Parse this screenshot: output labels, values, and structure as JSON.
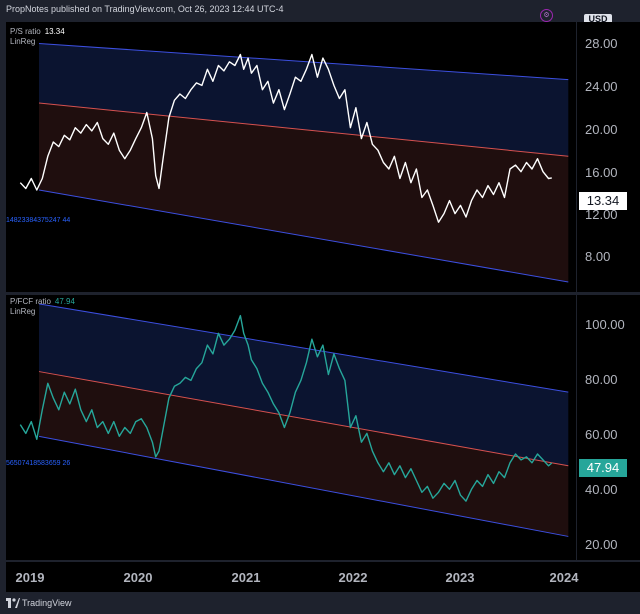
{
  "header": {
    "attribution": "PropNotes published on TradingView.com, Oct 26, 2023 12:44 UTC-4",
    "currency_badge": "USD"
  },
  "footer": {
    "brand": "TradingView"
  },
  "colors": {
    "upper_band_fill": "#0b1430",
    "lower_band_fill": "#1f0e0e",
    "channel_line": "#3c4fe0",
    "center_line": "#d6514f",
    "ps_line": "#ffffff",
    "pfcf_line": "#26a69a",
    "ps_badge_bg": "#ffffff",
    "pfcf_badge_bg": "#26a69a"
  },
  "chart_data": [
    {
      "type": "line",
      "legend": {
        "name": "P/S ratio",
        "value": "13.34",
        "sub": "LinReg"
      },
      "linreg_label": "14823384375247 44",
      "y_ticks": [
        "28.00",
        "24.00",
        "20.00",
        "16.00",
        "12.00",
        "8.00"
      ],
      "y_scale": "log",
      "ylim": [
        7.2,
        31
      ],
      "current_value": "13.34",
      "linreg": {
        "upper": [
          {
            "x": 2019.17,
            "y": 27.6
          },
          {
            "x": 2023.98,
            "y": 22.7
          }
        ],
        "center": [
          {
            "x": 2019.17,
            "y": 20.0
          },
          {
            "x": 2023.98,
            "y": 15.0
          }
        ],
        "lower": [
          {
            "x": 2019.17,
            "y": 12.5
          },
          {
            "x": 2023.98,
            "y": 7.6
          }
        ]
      },
      "series": [
        {
          "name": "P/S ratio",
          "points": [
            {
              "x": 2019.0,
              "y": 13.0
            },
            {
              "x": 2019.05,
              "y": 12.6
            },
            {
              "x": 2019.1,
              "y": 13.3
            },
            {
              "x": 2019.15,
              "y": 12.5
            },
            {
              "x": 2019.2,
              "y": 13.3
            },
            {
              "x": 2019.25,
              "y": 15.0
            },
            {
              "x": 2019.3,
              "y": 16.2
            },
            {
              "x": 2019.35,
              "y": 15.8
            },
            {
              "x": 2019.4,
              "y": 16.8
            },
            {
              "x": 2019.45,
              "y": 16.4
            },
            {
              "x": 2019.5,
              "y": 17.5
            },
            {
              "x": 2019.55,
              "y": 17.0
            },
            {
              "x": 2019.6,
              "y": 17.8
            },
            {
              "x": 2019.65,
              "y": 17.2
            },
            {
              "x": 2019.7,
              "y": 18.0
            },
            {
              "x": 2019.75,
              "y": 16.5
            },
            {
              "x": 2019.8,
              "y": 16.0
            },
            {
              "x": 2019.85,
              "y": 17.0
            },
            {
              "x": 2019.9,
              "y": 15.5
            },
            {
              "x": 2019.95,
              "y": 14.8
            },
            {
              "x": 2020.0,
              "y": 15.5
            },
            {
              "x": 2020.05,
              "y": 16.5
            },
            {
              "x": 2020.1,
              "y": 17.5
            },
            {
              "x": 2020.15,
              "y": 19.0
            },
            {
              "x": 2020.2,
              "y": 16.5
            },
            {
              "x": 2020.23,
              "y": 13.5
            },
            {
              "x": 2020.26,
              "y": 12.6
            },
            {
              "x": 2020.3,
              "y": 15.0
            },
            {
              "x": 2020.35,
              "y": 18.5
            },
            {
              "x": 2020.4,
              "y": 20.3
            },
            {
              "x": 2020.45,
              "y": 21.0
            },
            {
              "x": 2020.5,
              "y": 20.5
            },
            {
              "x": 2020.55,
              "y": 21.5
            },
            {
              "x": 2020.6,
              "y": 22.3
            },
            {
              "x": 2020.65,
              "y": 22.0
            },
            {
              "x": 2020.7,
              "y": 24.0
            },
            {
              "x": 2020.75,
              "y": 22.5
            },
            {
              "x": 2020.8,
              "y": 24.5
            },
            {
              "x": 2020.85,
              "y": 23.8
            },
            {
              "x": 2020.9,
              "y": 25.0
            },
            {
              "x": 2020.95,
              "y": 24.5
            },
            {
              "x": 2021.0,
              "y": 26.0
            },
            {
              "x": 2021.03,
              "y": 24.0
            },
            {
              "x": 2021.07,
              "y": 25.5
            },
            {
              "x": 2021.1,
              "y": 23.5
            },
            {
              "x": 2021.15,
              "y": 24.5
            },
            {
              "x": 2021.2,
              "y": 21.5
            },
            {
              "x": 2021.25,
              "y": 22.5
            },
            {
              "x": 2021.3,
              "y": 20.0
            },
            {
              "x": 2021.35,
              "y": 21.5
            },
            {
              "x": 2021.4,
              "y": 19.3
            },
            {
              "x": 2021.45,
              "y": 21.0
            },
            {
              "x": 2021.5,
              "y": 23.0
            },
            {
              "x": 2021.55,
              "y": 22.5
            },
            {
              "x": 2021.6,
              "y": 24.0
            },
            {
              "x": 2021.65,
              "y": 26.0
            },
            {
              "x": 2021.7,
              "y": 23.0
            },
            {
              "x": 2021.75,
              "y": 25.5
            },
            {
              "x": 2021.8,
              "y": 24.0
            },
            {
              "x": 2021.85,
              "y": 22.0
            },
            {
              "x": 2021.9,
              "y": 20.5
            },
            {
              "x": 2021.95,
              "y": 21.5
            },
            {
              "x": 2022.0,
              "y": 17.5
            },
            {
              "x": 2022.05,
              "y": 19.5
            },
            {
              "x": 2022.1,
              "y": 16.5
            },
            {
              "x": 2022.15,
              "y": 18.0
            },
            {
              "x": 2022.2,
              "y": 16.0
            },
            {
              "x": 2022.25,
              "y": 15.5
            },
            {
              "x": 2022.3,
              "y": 14.5
            },
            {
              "x": 2022.35,
              "y": 14.0
            },
            {
              "x": 2022.4,
              "y": 15.0
            },
            {
              "x": 2022.45,
              "y": 13.3
            },
            {
              "x": 2022.5,
              "y": 14.5
            },
            {
              "x": 2022.55,
              "y": 13.0
            },
            {
              "x": 2022.6,
              "y": 14.0
            },
            {
              "x": 2022.65,
              "y": 12.0
            },
            {
              "x": 2022.7,
              "y": 12.5
            },
            {
              "x": 2022.75,
              "y": 11.5
            },
            {
              "x": 2022.8,
              "y": 10.5
            },
            {
              "x": 2022.85,
              "y": 11.0
            },
            {
              "x": 2022.9,
              "y": 11.8
            },
            {
              "x": 2022.95,
              "y": 11.0
            },
            {
              "x": 2023.0,
              "y": 11.5
            },
            {
              "x": 2023.05,
              "y": 10.8
            },
            {
              "x": 2023.1,
              "y": 11.8
            },
            {
              "x": 2023.15,
              "y": 12.5
            },
            {
              "x": 2023.2,
              "y": 12.0
            },
            {
              "x": 2023.25,
              "y": 12.8
            },
            {
              "x": 2023.3,
              "y": 12.2
            },
            {
              "x": 2023.35,
              "y": 13.0
            },
            {
              "x": 2023.4,
              "y": 12.0
            },
            {
              "x": 2023.45,
              "y": 14.0
            },
            {
              "x": 2023.5,
              "y": 14.3
            },
            {
              "x": 2023.55,
              "y": 13.8
            },
            {
              "x": 2023.6,
              "y": 14.5
            },
            {
              "x": 2023.65,
              "y": 14.0
            },
            {
              "x": 2023.7,
              "y": 14.8
            },
            {
              "x": 2023.75,
              "y": 13.8
            },
            {
              "x": 2023.8,
              "y": 13.3
            },
            {
              "x": 2023.83,
              "y": 13.34
            }
          ]
        }
      ]
    },
    {
      "type": "line",
      "legend": {
        "name": "P/FCF ratio",
        "value": "47.94",
        "sub": "LinReg"
      },
      "linreg_label": "56507418583659 26",
      "y_ticks": [
        "100.00",
        "80.00",
        "60.00",
        "40.00",
        "20.00"
      ],
      "y_scale": "linear",
      "ylim": [
        15,
        105
      ],
      "current_value": "47.94",
      "linreg": {
        "upper": [
          {
            "x": 2019.17,
            "y": 102
          },
          {
            "x": 2023.98,
            "y": 72
          }
        ],
        "center": [
          {
            "x": 2019.17,
            "y": 79
          },
          {
            "x": 2023.98,
            "y": 47
          }
        ],
        "lower": [
          {
            "x": 2019.17,
            "y": 57
          },
          {
            "x": 2023.98,
            "y": 23
          }
        ]
      },
      "series": [
        {
          "name": "P/FCF ratio",
          "points": [
            {
              "x": 2019.0,
              "y": 61
            },
            {
              "x": 2019.05,
              "y": 58
            },
            {
              "x": 2019.1,
              "y": 62
            },
            {
              "x": 2019.15,
              "y": 56
            },
            {
              "x": 2019.2,
              "y": 66
            },
            {
              "x": 2019.25,
              "y": 75
            },
            {
              "x": 2019.3,
              "y": 70
            },
            {
              "x": 2019.35,
              "y": 66
            },
            {
              "x": 2019.4,
              "y": 72
            },
            {
              "x": 2019.45,
              "y": 68
            },
            {
              "x": 2019.5,
              "y": 73
            },
            {
              "x": 2019.55,
              "y": 66
            },
            {
              "x": 2019.6,
              "y": 62
            },
            {
              "x": 2019.65,
              "y": 66
            },
            {
              "x": 2019.7,
              "y": 60
            },
            {
              "x": 2019.75,
              "y": 62
            },
            {
              "x": 2019.8,
              "y": 58
            },
            {
              "x": 2019.85,
              "y": 62
            },
            {
              "x": 2019.9,
              "y": 57
            },
            {
              "x": 2019.95,
              "y": 60
            },
            {
              "x": 2020.0,
              "y": 58
            },
            {
              "x": 2020.05,
              "y": 62
            },
            {
              "x": 2020.1,
              "y": 63
            },
            {
              "x": 2020.15,
              "y": 60
            },
            {
              "x": 2020.2,
              "y": 55
            },
            {
              "x": 2020.23,
              "y": 50
            },
            {
              "x": 2020.26,
              "y": 52
            },
            {
              "x": 2020.3,
              "y": 60
            },
            {
              "x": 2020.35,
              "y": 70
            },
            {
              "x": 2020.4,
              "y": 74
            },
            {
              "x": 2020.45,
              "y": 75
            },
            {
              "x": 2020.5,
              "y": 77
            },
            {
              "x": 2020.55,
              "y": 76
            },
            {
              "x": 2020.6,
              "y": 80
            },
            {
              "x": 2020.65,
              "y": 82
            },
            {
              "x": 2020.7,
              "y": 88
            },
            {
              "x": 2020.75,
              "y": 85
            },
            {
              "x": 2020.8,
              "y": 92
            },
            {
              "x": 2020.85,
              "y": 88
            },
            {
              "x": 2020.9,
              "y": 90
            },
            {
              "x": 2020.95,
              "y": 93
            },
            {
              "x": 2021.0,
              "y": 98
            },
            {
              "x": 2021.03,
              "y": 92
            },
            {
              "x": 2021.07,
              "y": 88
            },
            {
              "x": 2021.1,
              "y": 83
            },
            {
              "x": 2021.15,
              "y": 80
            },
            {
              "x": 2021.2,
              "y": 75
            },
            {
              "x": 2021.25,
              "y": 72
            },
            {
              "x": 2021.3,
              "y": 68
            },
            {
              "x": 2021.35,
              "y": 65
            },
            {
              "x": 2021.4,
              "y": 60
            },
            {
              "x": 2021.45,
              "y": 65
            },
            {
              "x": 2021.5,
              "y": 72
            },
            {
              "x": 2021.55,
              "y": 76
            },
            {
              "x": 2021.6,
              "y": 82
            },
            {
              "x": 2021.65,
              "y": 90
            },
            {
              "x": 2021.7,
              "y": 84
            },
            {
              "x": 2021.75,
              "y": 88
            },
            {
              "x": 2021.8,
              "y": 78
            },
            {
              "x": 2021.85,
              "y": 85
            },
            {
              "x": 2021.9,
              "y": 80
            },
            {
              "x": 2021.95,
              "y": 76
            },
            {
              "x": 2022.0,
              "y": 60
            },
            {
              "x": 2022.05,
              "y": 64
            },
            {
              "x": 2022.1,
              "y": 55
            },
            {
              "x": 2022.15,
              "y": 58
            },
            {
              "x": 2022.2,
              "y": 52
            },
            {
              "x": 2022.25,
              "y": 48
            },
            {
              "x": 2022.3,
              "y": 45
            },
            {
              "x": 2022.35,
              "y": 48
            },
            {
              "x": 2022.4,
              "y": 44
            },
            {
              "x": 2022.45,
              "y": 47
            },
            {
              "x": 2022.5,
              "y": 43
            },
            {
              "x": 2022.55,
              "y": 46
            },
            {
              "x": 2022.6,
              "y": 42
            },
            {
              "x": 2022.65,
              "y": 38
            },
            {
              "x": 2022.7,
              "y": 40
            },
            {
              "x": 2022.75,
              "y": 36
            },
            {
              "x": 2022.8,
              "y": 38
            },
            {
              "x": 2022.85,
              "y": 41
            },
            {
              "x": 2022.9,
              "y": 39
            },
            {
              "x": 2022.95,
              "y": 42
            },
            {
              "x": 2023.0,
              "y": 37
            },
            {
              "x": 2023.05,
              "y": 35
            },
            {
              "x": 2023.1,
              "y": 39
            },
            {
              "x": 2023.15,
              "y": 42
            },
            {
              "x": 2023.2,
              "y": 40
            },
            {
              "x": 2023.25,
              "y": 44
            },
            {
              "x": 2023.3,
              "y": 41
            },
            {
              "x": 2023.35,
              "y": 45
            },
            {
              "x": 2023.4,
              "y": 43
            },
            {
              "x": 2023.45,
              "y": 48
            },
            {
              "x": 2023.5,
              "y": 51
            },
            {
              "x": 2023.55,
              "y": 49
            },
            {
              "x": 2023.6,
              "y": 50
            },
            {
              "x": 2023.65,
              "y": 48
            },
            {
              "x": 2023.7,
              "y": 51
            },
            {
              "x": 2023.75,
              "y": 49
            },
            {
              "x": 2023.8,
              "y": 47
            },
            {
              "x": 2023.83,
              "y": 47.94
            }
          ]
        }
      ]
    }
  ],
  "time_axis": {
    "labels": [
      "2019",
      "2020",
      "2021",
      "2022",
      "2023",
      "2024"
    ],
    "xlim": [
      2018.87,
      2024.05
    ]
  }
}
